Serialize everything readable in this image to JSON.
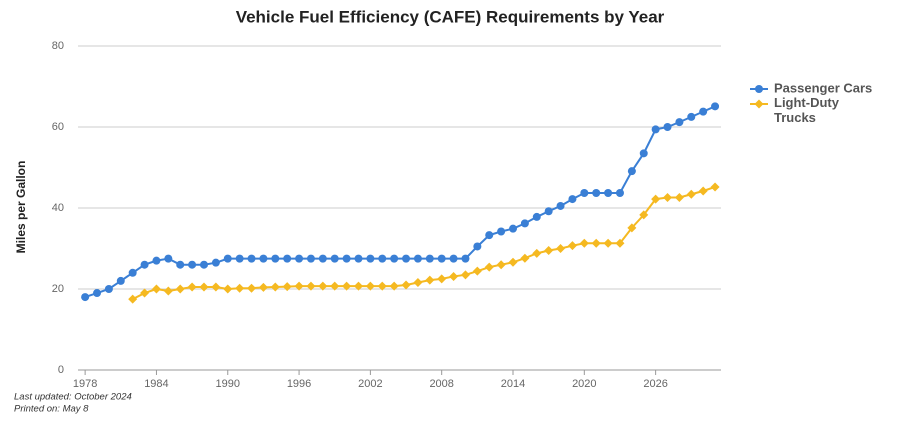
{
  "chart_data": {
    "type": "line",
    "title": "Vehicle Fuel Efficiency (CAFE) Requirements by Year",
    "y_label": "Miles per Gallon",
    "x": [
      1978,
      1979,
      1980,
      1981,
      1982,
      1983,
      1984,
      1985,
      1986,
      1987,
      1988,
      1989,
      1990,
      1991,
      1992,
      1993,
      1994,
      1995,
      1996,
      1997,
      1998,
      1999,
      2000,
      2001,
      2002,
      2003,
      2004,
      2005,
      2006,
      2007,
      2008,
      2009,
      2010,
      2011,
      2012,
      2013,
      2014,
      2015,
      2016,
      2017,
      2018,
      2019,
      2020,
      2021,
      2022,
      2023,
      2024,
      2025,
      2026,
      2027,
      2028,
      2029,
      2030,
      2031
    ],
    "series": [
      {
        "name": "Passenger Cars",
        "color": "#3a7fd5",
        "marker": "circle",
        "values": [
          18,
          19,
          20,
          22,
          24,
          26,
          27,
          27.5,
          26,
          26,
          26,
          26.5,
          27.5,
          27.5,
          27.5,
          27.5,
          27.5,
          27.5,
          27.5,
          27.5,
          27.5,
          27.5,
          27.5,
          27.5,
          27.5,
          27.5,
          27.5,
          27.5,
          27.5,
          27.5,
          27.5,
          27.5,
          27.5,
          30.5,
          33.3,
          34.2,
          34.9,
          36.2,
          37.8,
          39.2,
          40.5,
          42.2,
          43.7,
          43.7,
          43.7,
          43.7,
          49.1,
          53.5,
          59.4,
          60,
          61.2,
          62.5,
          63.8,
          65.1
        ]
      },
      {
        "name": "Light-Duty Trucks",
        "color": "#f5b921",
        "marker": "diamond",
        "values": [
          null,
          null,
          null,
          null,
          17.5,
          19,
          20,
          19.5,
          20,
          20.5,
          20.5,
          20.5,
          20,
          20.2,
          20.2,
          20.4,
          20.5,
          20.6,
          20.7,
          20.7,
          20.7,
          20.7,
          20.7,
          20.7,
          20.7,
          20.7,
          20.7,
          21,
          21.6,
          22.2,
          22.5,
          23.1,
          23.5,
          24.4,
          25.4,
          26,
          26.6,
          27.6,
          28.8,
          29.5,
          30,
          30.7,
          31.3,
          31.3,
          31.3,
          31.3,
          35.1,
          38.3,
          42.2,
          42.6,
          42.6,
          43.4,
          44.2,
          45.2
        ]
      }
    ],
    "xlim": [
      1977.4,
      2031.5
    ],
    "xticks": [
      1978,
      1984,
      1990,
      1996,
      2002,
      2008,
      2014,
      2020,
      2026
    ],
    "ylim": [
      0,
      80
    ],
    "yticks": [
      0,
      20,
      40,
      60,
      80
    ],
    "grid": true,
    "legend": "right",
    "footnotes": [
      "Last updated: October 2024",
      "Printed on: May 8"
    ]
  }
}
